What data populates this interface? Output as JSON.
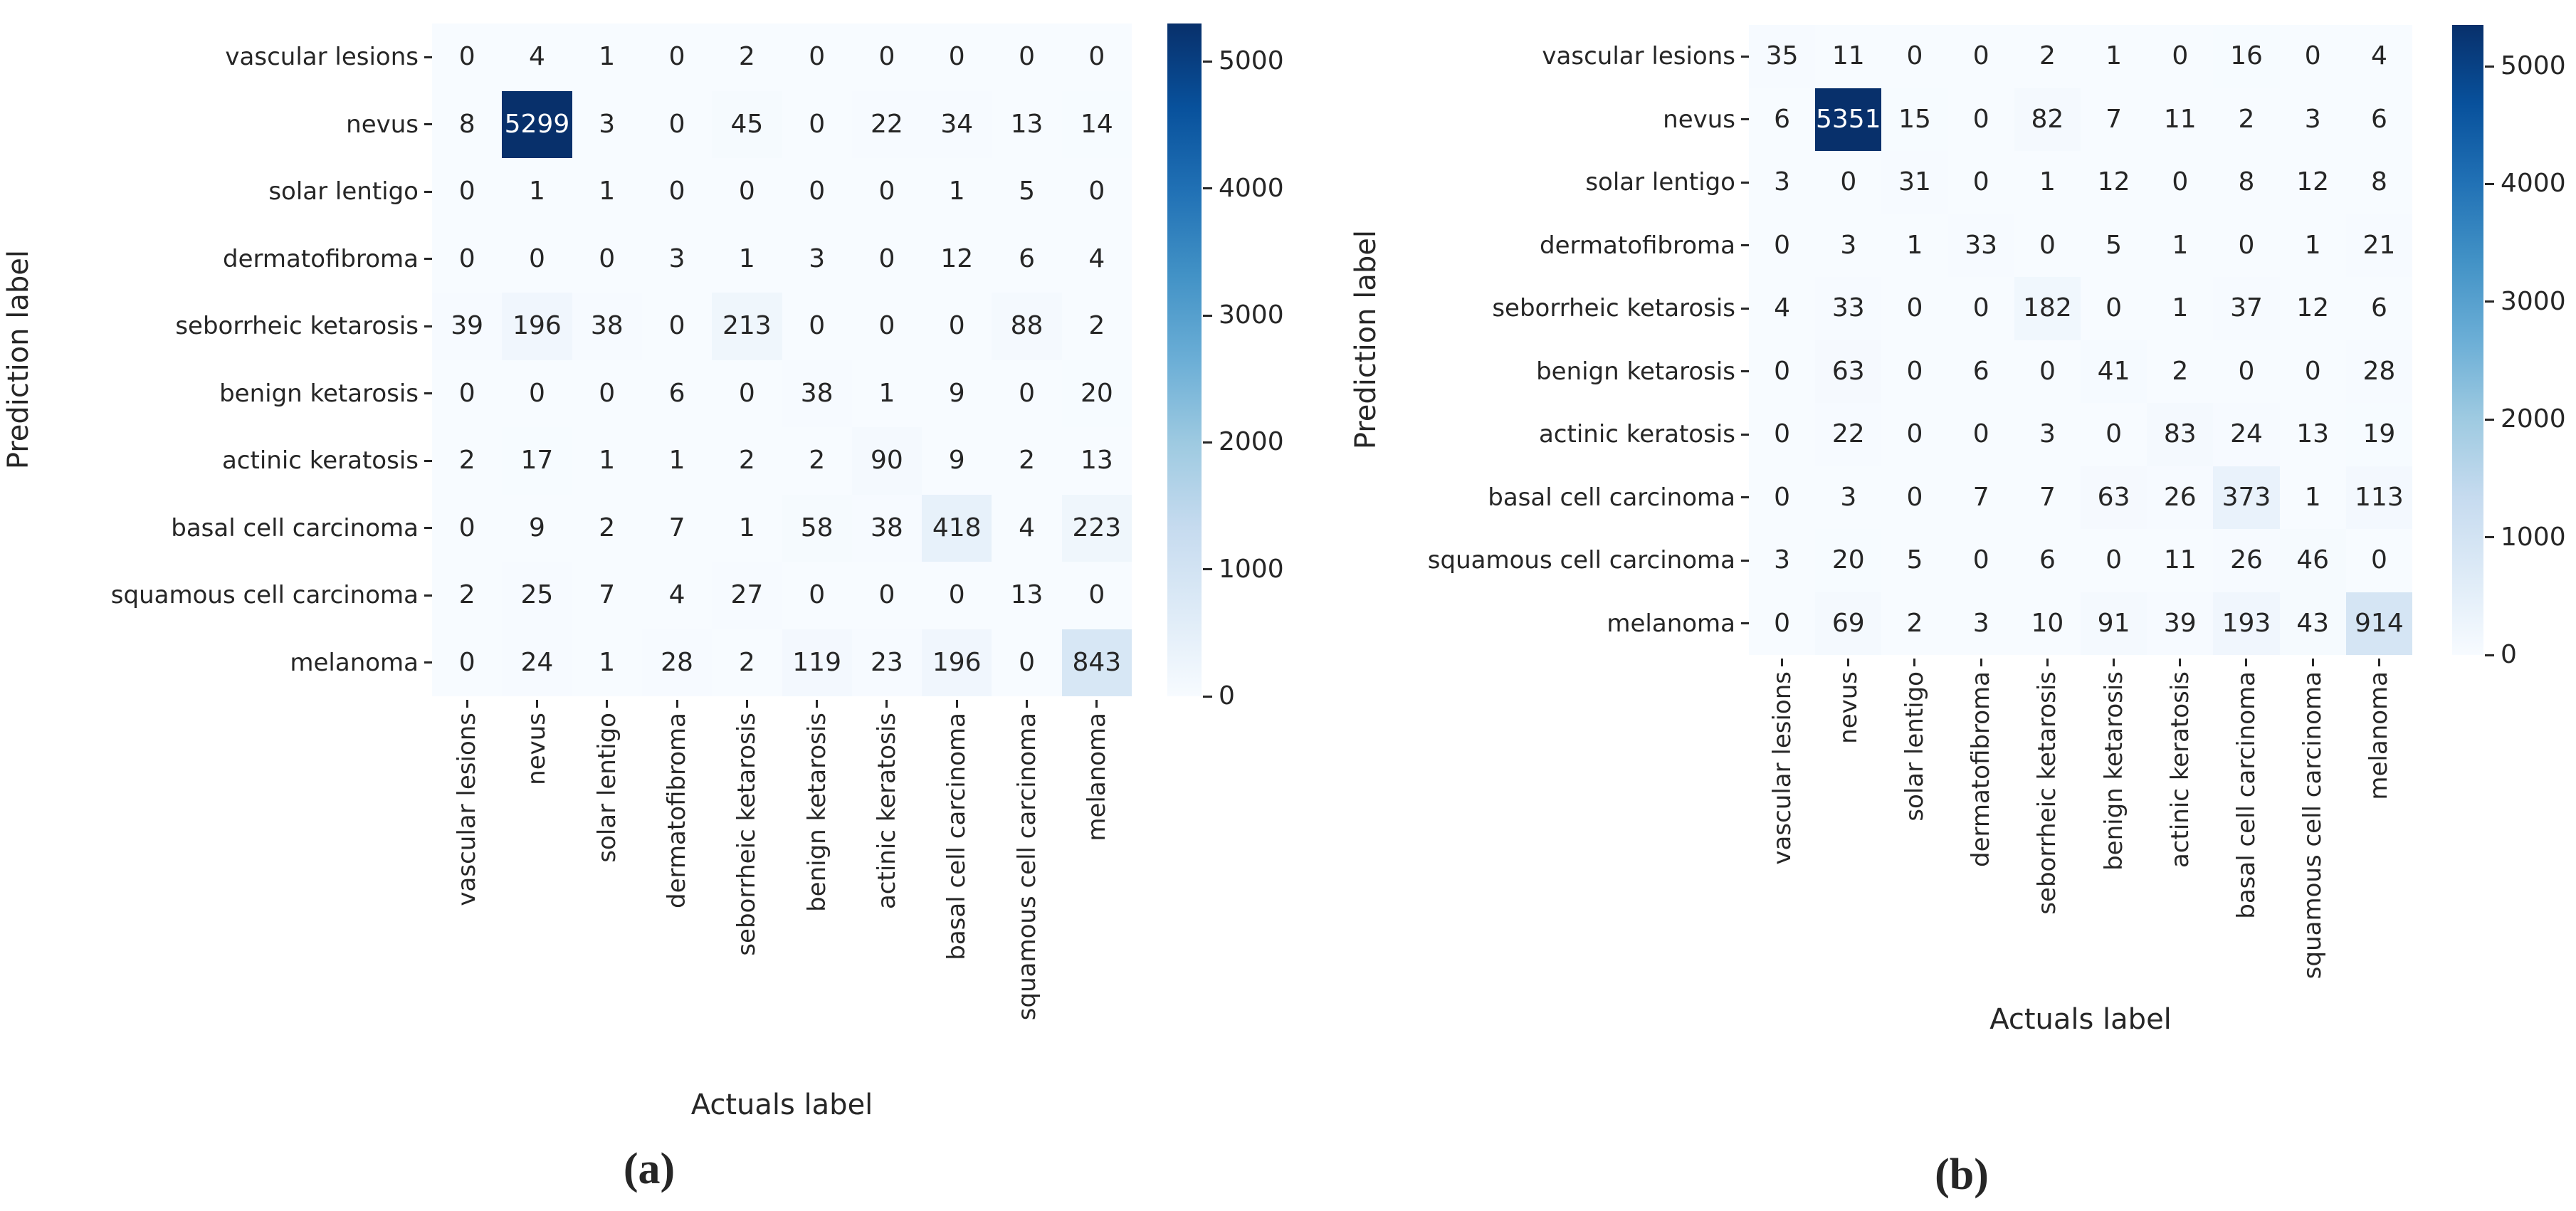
{
  "figure": {
    "background": "#ffffff",
    "subplots": [
      {
        "caption": "(a)",
        "xlabel": "Actuals label",
        "ylabel": "Prediction label"
      },
      {
        "caption": "(b)",
        "xlabel": "Actuals label",
        "ylabel": "Prediction label"
      }
    ]
  },
  "colormap": {
    "name": "Blues",
    "anchors": [
      "#f7fbff",
      "#deebf7",
      "#c6dbef",
      "#9ecae1",
      "#6baed6",
      "#4292c6",
      "#2171b5",
      "#08519c",
      "#08306b"
    ],
    "annotation_dark_text": "#262626",
    "annotation_light_text": "#ffffff"
  },
  "chart_data": [
    {
      "type": "heatmap",
      "subplot": "(a)",
      "xlabel": "Actuals label",
      "ylabel": "Prediction label",
      "categories": [
        "vascular lesions",
        "nevus",
        "solar lentigo",
        "dermatofibroma",
        "seborrheic ketarosis",
        "benign ketarosis",
        "actinic keratosis",
        "basal cell carcinoma",
        "squamous cell carcinoma",
        "melanoma"
      ],
      "vmin": 0,
      "vmax": 5299,
      "colorbar_ticks": [
        5000,
        4000,
        3000,
        2000,
        1000,
        0
      ],
      "legend_position": "right",
      "grid": false,
      "matrix": [
        [
          0,
          4,
          1,
          0,
          2,
          0,
          0,
          0,
          0,
          0
        ],
        [
          8,
          5299,
          3,
          0,
          45,
          0,
          22,
          34,
          13,
          14
        ],
        [
          0,
          1,
          1,
          0,
          0,
          0,
          0,
          1,
          5,
          0
        ],
        [
          0,
          0,
          0,
          3,
          1,
          3,
          0,
          12,
          6,
          4
        ],
        [
          39,
          196,
          38,
          0,
          213,
          0,
          0,
          0,
          88,
          2
        ],
        [
          0,
          0,
          0,
          6,
          0,
          38,
          1,
          9,
          0,
          20
        ],
        [
          2,
          17,
          1,
          1,
          2,
          2,
          90,
          9,
          2,
          13
        ],
        [
          0,
          9,
          2,
          7,
          1,
          58,
          38,
          418,
          4,
          223
        ],
        [
          2,
          25,
          7,
          4,
          27,
          0,
          0,
          0,
          13,
          0
        ],
        [
          0,
          24,
          1,
          28,
          2,
          119,
          23,
          196,
          0,
          843
        ]
      ]
    },
    {
      "type": "heatmap",
      "subplot": "(b)",
      "xlabel": "Actuals label",
      "ylabel": "Prediction label",
      "categories": [
        "vascular lesions",
        "nevus",
        "solar lentigo",
        "dermatofibroma",
        "seborrheic ketarosis",
        "benign ketarosis",
        "actinic keratosis",
        "basal cell carcinoma",
        "squamous cell carcinoma",
        "melanoma"
      ],
      "vmin": 0,
      "vmax": 5351,
      "colorbar_ticks": [
        5000,
        4000,
        3000,
        2000,
        1000,
        0
      ],
      "legend_position": "right",
      "grid": false,
      "matrix": [
        [
          35,
          11,
          0,
          0,
          2,
          1,
          0,
          16,
          0,
          4
        ],
        [
          6,
          5351,
          15,
          0,
          82,
          7,
          11,
          2,
          3,
          6
        ],
        [
          3,
          0,
          31,
          0,
          1,
          12,
          0,
          8,
          12,
          8
        ],
        [
          0,
          3,
          1,
          33,
          0,
          5,
          1,
          0,
          1,
          21
        ],
        [
          4,
          33,
          0,
          0,
          182,
          0,
          1,
          37,
          12,
          6
        ],
        [
          0,
          63,
          0,
          6,
          0,
          41,
          2,
          0,
          0,
          28
        ],
        [
          0,
          22,
          0,
          0,
          3,
          0,
          83,
          24,
          13,
          19
        ],
        [
          0,
          3,
          0,
          7,
          7,
          63,
          26,
          373,
          1,
          113
        ],
        [
          3,
          20,
          5,
          0,
          6,
          0,
          11,
          26,
          46,
          0
        ],
        [
          0,
          69,
          2,
          3,
          10,
          91,
          39,
          193,
          43,
          914
        ]
      ]
    }
  ]
}
